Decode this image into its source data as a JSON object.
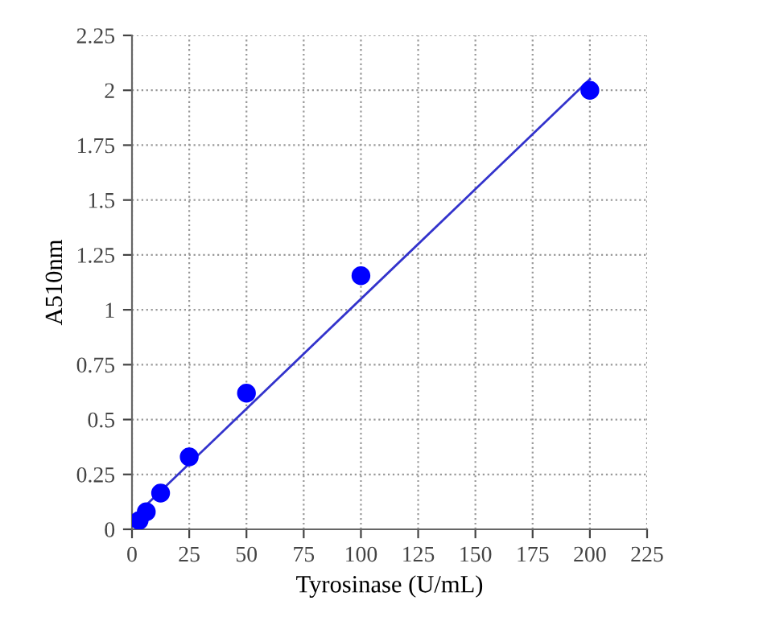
{
  "chart_data": {
    "type": "scatter",
    "xlabel": "Tyrosinase (U/mL)",
    "ylabel": "A510nm",
    "x": [
      3.125,
      6.25,
      12.5,
      25,
      50,
      100,
      200
    ],
    "series": [
      {
        "color": "#0000ff",
        "values": [
          0.04,
          0.08,
          0.165,
          0.33,
          0.62,
          1.155,
          2.0
        ]
      },
      {
        "type": "line",
        "color": "#3333cc",
        "x": [
          3.125,
          200
        ],
        "values": [
          0.08,
          2.05
        ],
        "marker": "none"
      }
    ],
    "marker": "circle",
    "grid": true,
    "line_style": "solid",
    "xlim": [
      0,
      225
    ],
    "xticks": [
      0,
      25,
      50,
      75,
      100,
      125,
      150,
      175,
      200,
      225
    ],
    "ylim": [
      0,
      2.25
    ],
    "yticks": [
      0,
      0.25,
      0.5,
      0.75,
      1,
      1.25,
      1.5,
      1.75,
      2,
      2.25
    ]
  }
}
